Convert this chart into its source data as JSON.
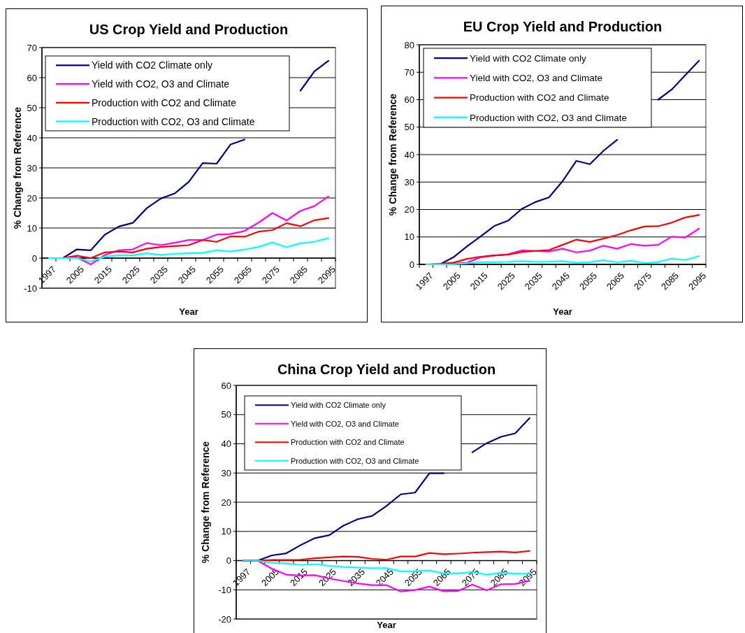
{
  "chart_data": [
    {
      "type": "line",
      "title": "US Crop Yield and Production",
      "xlabel": "Year",
      "ylabel": "% Change from Reference",
      "categories": [
        "1997",
        null,
        "2005",
        null,
        "2015",
        null,
        "2025",
        null,
        "2035",
        null,
        "2045",
        null,
        "2055",
        null,
        "2065",
        null,
        "2075",
        null,
        "2085",
        null,
        "2095"
      ],
      "ylim": [
        -10,
        70
      ],
      "yticks": [
        -10,
        0,
        10,
        20,
        30,
        40,
        50,
        60,
        70
      ],
      "grid": "y",
      "legend": "top left",
      "series": [
        {
          "name": "Yield with CO2 Climate only",
          "color": "#000080",
          "values": [
            0,
            0,
            2.9,
            2.6,
            7.8,
            10.5,
            11.7,
            16.6,
            19.8,
            21.5,
            25.3,
            31.6,
            31.4,
            37.8,
            39.4,
            null,
            null,
            null,
            55.7,
            62.1,
            65.6
          ]
        },
        {
          "name": "Yield with CO2, O3 and Climate",
          "color": "#ff00ff",
          "values": [
            0,
            0,
            0.2,
            -2.1,
            1.0,
            2.6,
            2.9,
            5.0,
            4.3,
            5.1,
            6.0,
            6.0,
            7.8,
            8.0,
            9.0,
            11.8,
            15.0,
            12.5,
            15.7,
            17.3,
            20.5
          ]
        },
        {
          "name": "Production with CO2 and Climate",
          "color": "#ff0000",
          "values": [
            0,
            0,
            0.8,
            0,
            1.9,
            2.2,
            1.9,
            3.1,
            3.7,
            4.0,
            4.3,
            6.0,
            5.4,
            7.2,
            7.1,
            8.8,
            9.3,
            11.6,
            10.6,
            12.6,
            13.3
          ]
        },
        {
          "name": "Production with CO2, O3 and Climate",
          "color": "#00ffff",
          "values": [
            0,
            0,
            0,
            -1.1,
            0.5,
            0.9,
            0.9,
            1.6,
            1.0,
            1.4,
            1.6,
            1.7,
            2.6,
            2.2,
            2.8,
            3.7,
            5.2,
            3.6,
            4.9,
            5.4,
            6.6
          ]
        }
      ]
    },
    {
      "type": "line",
      "title": "EU Crop Yield and Production",
      "xlabel": "Year",
      "ylabel": "% Change from Reference",
      "categories": [
        "1997",
        null,
        "2005",
        null,
        "2015",
        null,
        "2025",
        null,
        "2035",
        null,
        "2045",
        null,
        "2055",
        null,
        "2065",
        null,
        "2075",
        null,
        "2085",
        null,
        "2095"
      ],
      "ylim": [
        0,
        80
      ],
      "yticks": [
        0,
        10,
        20,
        30,
        40,
        50,
        60,
        70,
        80
      ],
      "grid": "y",
      "legend": "top left",
      "series": [
        {
          "name": "Yield with CO2 Climate only",
          "color": "#000080",
          "values": [
            0,
            0,
            2.6,
            6.6,
            10.2,
            14.0,
            15.9,
            20.2,
            22.7,
            24.4,
            30.3,
            37.7,
            36.5,
            41.4,
            45.4,
            null,
            null,
            60.0,
            63.7,
            69.0,
            74.2
          ]
        },
        {
          "name": "Yield with CO2, O3 and Climate",
          "color": "#ff00ff",
          "values": [
            0,
            0,
            0.2,
            0.6,
            2.6,
            3.2,
            3.7,
            5.1,
            4.9,
            4.7,
            5.7,
            4.4,
            5.0,
            6.8,
            5.7,
            7.4,
            6.8,
            7.1,
            10.1,
            9.8,
            13.0
          ]
        },
        {
          "name": "Production with CO2 and Climate",
          "color": "#ff0000",
          "values": [
            0,
            0.2,
            0.6,
            2.0,
            2.8,
            3.3,
            3.5,
            4.5,
            4.9,
            5.2,
            7.1,
            9.0,
            8.2,
            9.4,
            10.7,
            12.4,
            13.8,
            13.9,
            15.2,
            17.1,
            18.0
          ]
        },
        {
          "name": "Production with CO2, O3 and Climate",
          "color": "#00ffff",
          "values": [
            0,
            0,
            0,
            0.4,
            0.8,
            0.8,
            0.9,
            1.2,
            0.9,
            0.9,
            1.2,
            0.6,
            0.8,
            1.5,
            0.7,
            1.3,
            0.5,
            0.8,
            2.1,
            1.6,
            3.0
          ]
        }
      ]
    },
    {
      "type": "line",
      "title": "China Crop Yield and Production",
      "xlabel": "Year",
      "ylabel": "% Change from Reference",
      "categories": [
        "1997",
        null,
        "2005",
        null,
        "2015",
        null,
        "2025",
        null,
        "2035",
        null,
        "2045",
        null,
        "2055",
        null,
        "2065",
        null,
        "2075",
        null,
        "2085",
        null,
        "2095"
      ],
      "ylim": [
        -20,
        60
      ],
      "yticks": [
        -20,
        -10,
        0,
        10,
        20,
        30,
        40,
        50,
        60
      ],
      "grid": "y",
      "legend": "top left",
      "series": [
        {
          "name": "Yield with CO2 Climate only",
          "color": "#000080",
          "values": [
            0,
            0,
            1.8,
            2.5,
            5.3,
            7.7,
            8.7,
            12.0,
            14.2,
            15.3,
            18.7,
            22.7,
            23.3,
            29.9,
            29.9,
            null,
            37.1,
            40.2,
            42.4,
            43.6,
            48.8
          ]
        },
        {
          "name": "Yield with CO2, O3 and Climate",
          "color": "#ff00ff",
          "values": [
            0,
            0,
            -2.8,
            -4.8,
            -5.1,
            -5.0,
            -6.1,
            -7.0,
            -7.8,
            -8.4,
            -8.4,
            -10.6,
            -10.1,
            -8.9,
            -10.5,
            -10.4,
            -8.2,
            -10.2,
            -8.1,
            -8.0,
            -6.9
          ]
        },
        {
          "name": "Production with CO2 and Climate",
          "color": "#ff0000",
          "values": [
            0,
            0,
            0.2,
            0.2,
            0.3,
            0.8,
            1.1,
            1.4,
            1.3,
            0.6,
            0.3,
            1.4,
            1.4,
            2.6,
            2.2,
            2.4,
            2.7,
            2.9,
            3.1,
            2.8,
            3.3
          ]
        },
        {
          "name": "Production with CO2, O3 and Climate",
          "color": "#00ffff",
          "values": [
            0,
            0,
            -0.8,
            -1.0,
            -1.5,
            -1.2,
            -1.8,
            -2.2,
            -2.4,
            -2.6,
            -2.6,
            -3.7,
            -3.7,
            -3.4,
            -4.4,
            -4.4,
            -3.9,
            -4.8,
            -4.2,
            -4.5,
            -4.5
          ]
        }
      ]
    }
  ]
}
